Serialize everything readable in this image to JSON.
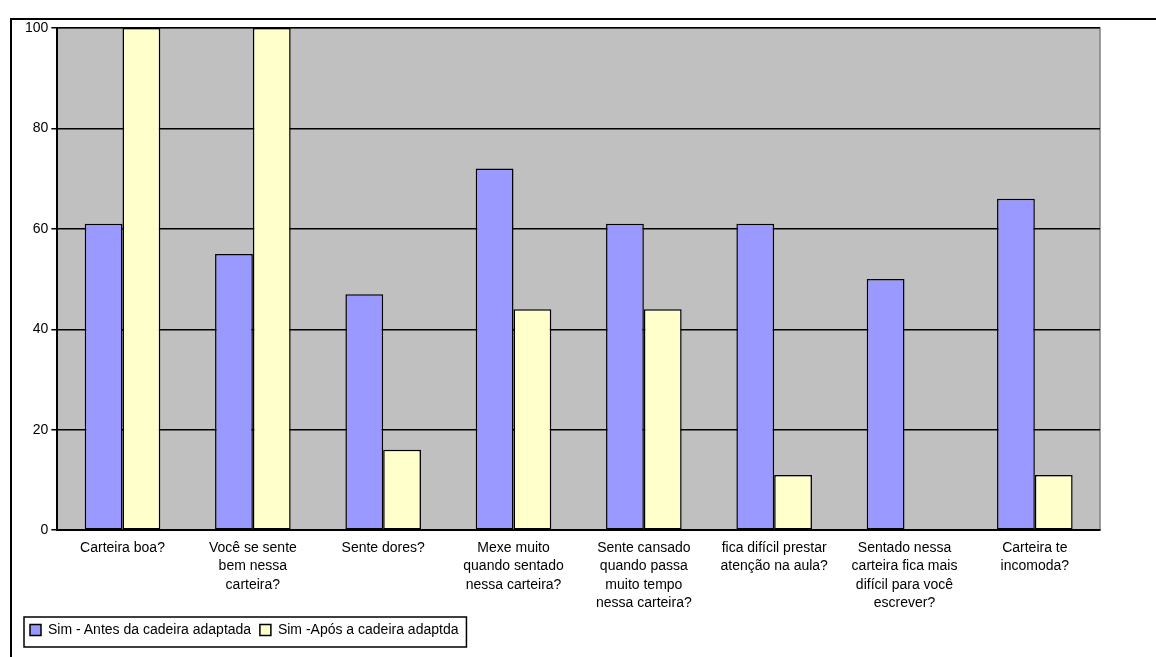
{
  "chart_data": {
    "type": "bar",
    "categories": [
      "Carteira boa?",
      "Você se sente bem nessa carteira?",
      "Sente dores?",
      "Mexe muito quando sentado nessa carteira?",
      "Sente cansado quando passa muito tempo nessa carteira?",
      "fica difícil prestar atenção na aula?",
      "Sentado nessa carteira fica mais difícil para você escrever?",
      "Carteira te incomoda?"
    ],
    "series": [
      {
        "name": "Sim - Antes da cadeira adaptada",
        "color": "#9999ff",
        "values": [
          61,
          55,
          47,
          72,
          61,
          61,
          50,
          66
        ]
      },
      {
        "name": "Sim -Após a cadeira adaptda",
        "color": "#ffffcc",
        "values": [
          100,
          100,
          16,
          44,
          44,
          11,
          0,
          11
        ]
      }
    ],
    "ylim": [
      0,
      100
    ],
    "yticks": [
      0,
      20,
      40,
      60,
      80,
      100
    ],
    "grid": "y",
    "legend": "bottom left"
  }
}
